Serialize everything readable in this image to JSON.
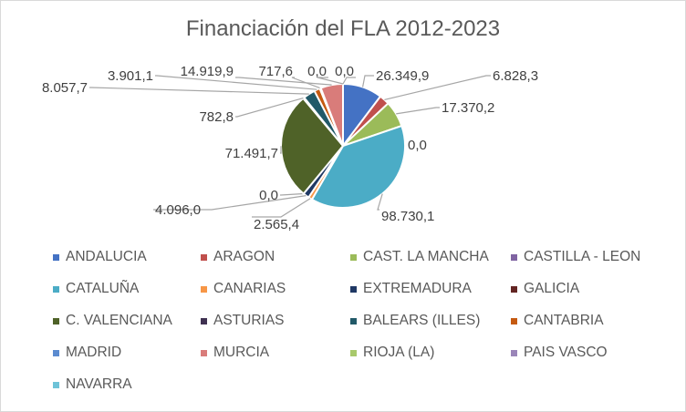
{
  "chart_data": {
    "type": "pie",
    "title": "Financiación del FLA 2012-2023",
    "series": [
      {
        "name": "ANDALUCIA",
        "value": 26349.9,
        "label": "26.349,9",
        "color": "#4472C4"
      },
      {
        "name": "ARAGON",
        "value": 6828.3,
        "label": "6.828,3",
        "color": "#C0504D"
      },
      {
        "name": "CAST. LA MANCHA",
        "value": 17370.2,
        "label": "17.370,2",
        "color": "#9BBB59"
      },
      {
        "name": "CASTILLA - LEON",
        "value": 0.0,
        "label": "0,0",
        "color": "#8064A2"
      },
      {
        "name": "CATALUÑA",
        "value": 98730.1,
        "label": "98.730,1",
        "color": "#4BACC6"
      },
      {
        "name": "CANARIAS",
        "value": 2565.4,
        "label": "2.565,4",
        "color": "#F79646"
      },
      {
        "name": "EXTREMADURA",
        "value": 4096.0,
        "label": "4.096,0",
        "color": "#1F3864"
      },
      {
        "name": "GALICIA",
        "value": 0.0,
        "label": "0,0",
        "color": "#632523"
      },
      {
        "name": "C. VALENCIANA",
        "value": 71491.7,
        "label": "71.491,7",
        "color": "#4F6228"
      },
      {
        "name": "ASTURIAS",
        "value": 782.8,
        "label": "782,8",
        "color": "#3F3151"
      },
      {
        "name": "BALEARS (ILLES)",
        "value": 8057.7,
        "label": "8.057,7",
        "color": "#215968"
      },
      {
        "name": "CANTABRIA",
        "value": 3901.1,
        "label": "3.901,1",
        "color": "#C55A11"
      },
      {
        "name": "MADRID",
        "value": 717.6,
        "label": "717,6",
        "color": "#5B8BD0"
      },
      {
        "name": "MURCIA",
        "value": 14919.9,
        "label": "14.919,9",
        "color": "#D97C7A"
      },
      {
        "name": "RIOJA (LA)",
        "value": 0.0,
        "label": "0,0",
        "color": "#A8C96B"
      },
      {
        "name": "PAIS VASCO",
        "value": 0.0,
        "label": "0,0",
        "color": "#9A85B8"
      },
      {
        "name": "NAVARRA",
        "value": 0.0,
        "label": "0,0",
        "color": "#6EC3D8"
      }
    ],
    "legend_position": "bottom"
  }
}
